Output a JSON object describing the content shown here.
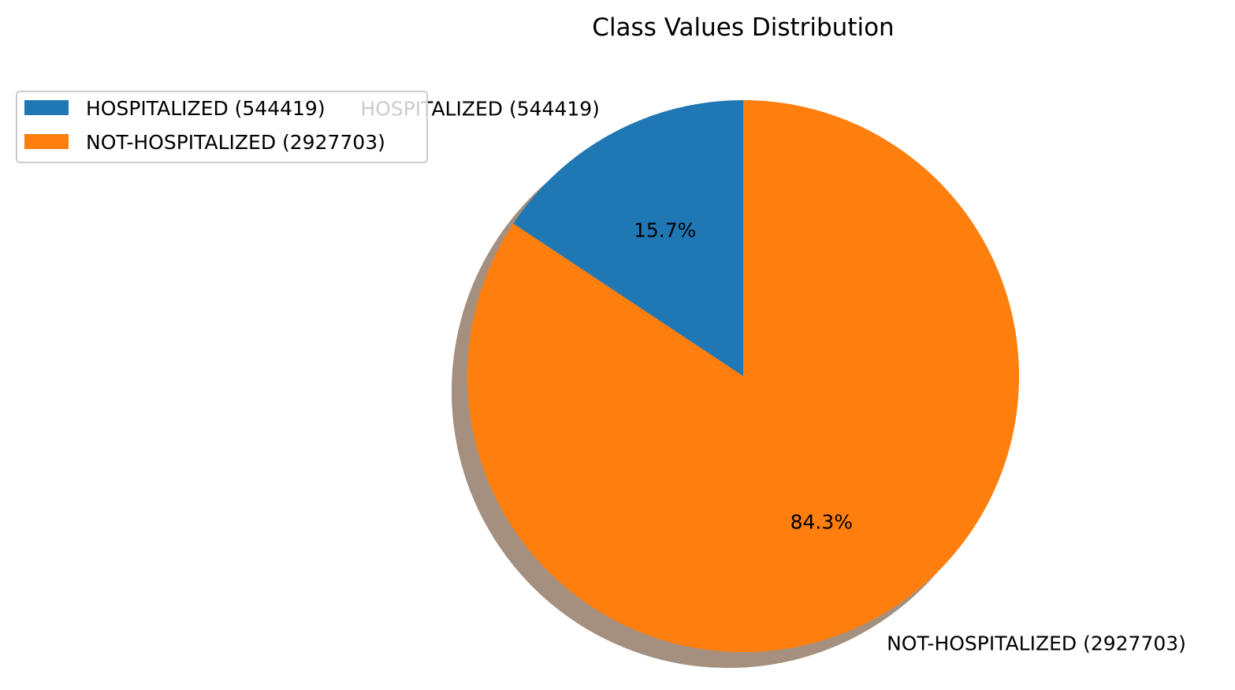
{
  "chart_data": {
    "type": "pie",
    "title": "Class Values Distribution",
    "slices": [
      {
        "label": "HOSPITALIZED (544419)",
        "value": 544419,
        "percent_label": "15.7%",
        "color": "#1f77b4"
      },
      {
        "label": "NOT-HOSPITALIZED (2927703)",
        "value": 2927703,
        "percent_label": "84.3%",
        "color": "#ff7f0e"
      }
    ],
    "start_angle_deg": 90,
    "direction": "counterclockwise",
    "shadow": true,
    "shadow_color": "#a58f7f",
    "legend": {
      "position": "top-left",
      "entries": [
        "HOSPITALIZED (544419)",
        "NOT-HOSPITALIZED (2927703)"
      ]
    }
  }
}
